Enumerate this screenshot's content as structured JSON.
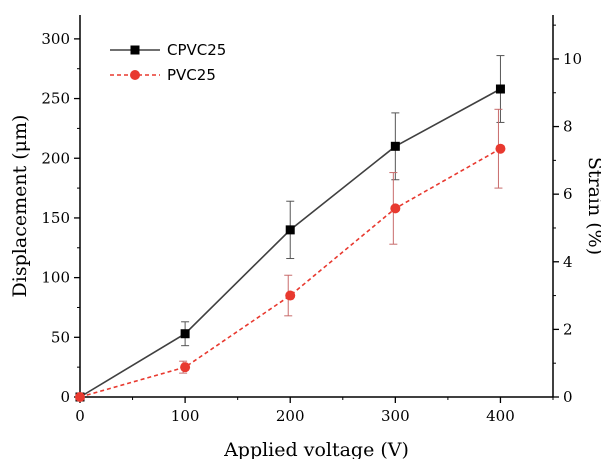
{
  "chart_data": {
    "type": "line",
    "x": [
      0,
      100,
      200,
      300,
      400
    ],
    "xlabel": "Applied voltage (V)",
    "ylabel": "Displacement (μm)",
    "y2label": "Strain (%)",
    "xlim": [
      0,
      450
    ],
    "ylim": [
      0,
      320
    ],
    "y2lim": [
      0,
      11.3
    ],
    "xticks": [
      "0",
      "100",
      "200",
      "300",
      "400"
    ],
    "yticks": [
      "0",
      "50",
      "100",
      "150",
      "200",
      "250",
      "300"
    ],
    "y2ticks": [
      "0",
      "2",
      "4",
      "6",
      "8",
      "10"
    ],
    "grid": false,
    "legend_position": "top-left",
    "series": [
      {
        "name": "CPVC25",
        "values": [
          0,
          53,
          140,
          210,
          258
        ],
        "errors": [
          0,
          10,
          24,
          28,
          28
        ],
        "color": "#404040",
        "marker": "square",
        "line_style": "solid"
      },
      {
        "name": "PVC25",
        "values": [
          0,
          25,
          85,
          158,
          208
        ],
        "errors": [
          0,
          5,
          17,
          30,
          33
        ],
        "color": "#e8392f",
        "marker": "circle",
        "line_style": "dashed"
      }
    ]
  }
}
